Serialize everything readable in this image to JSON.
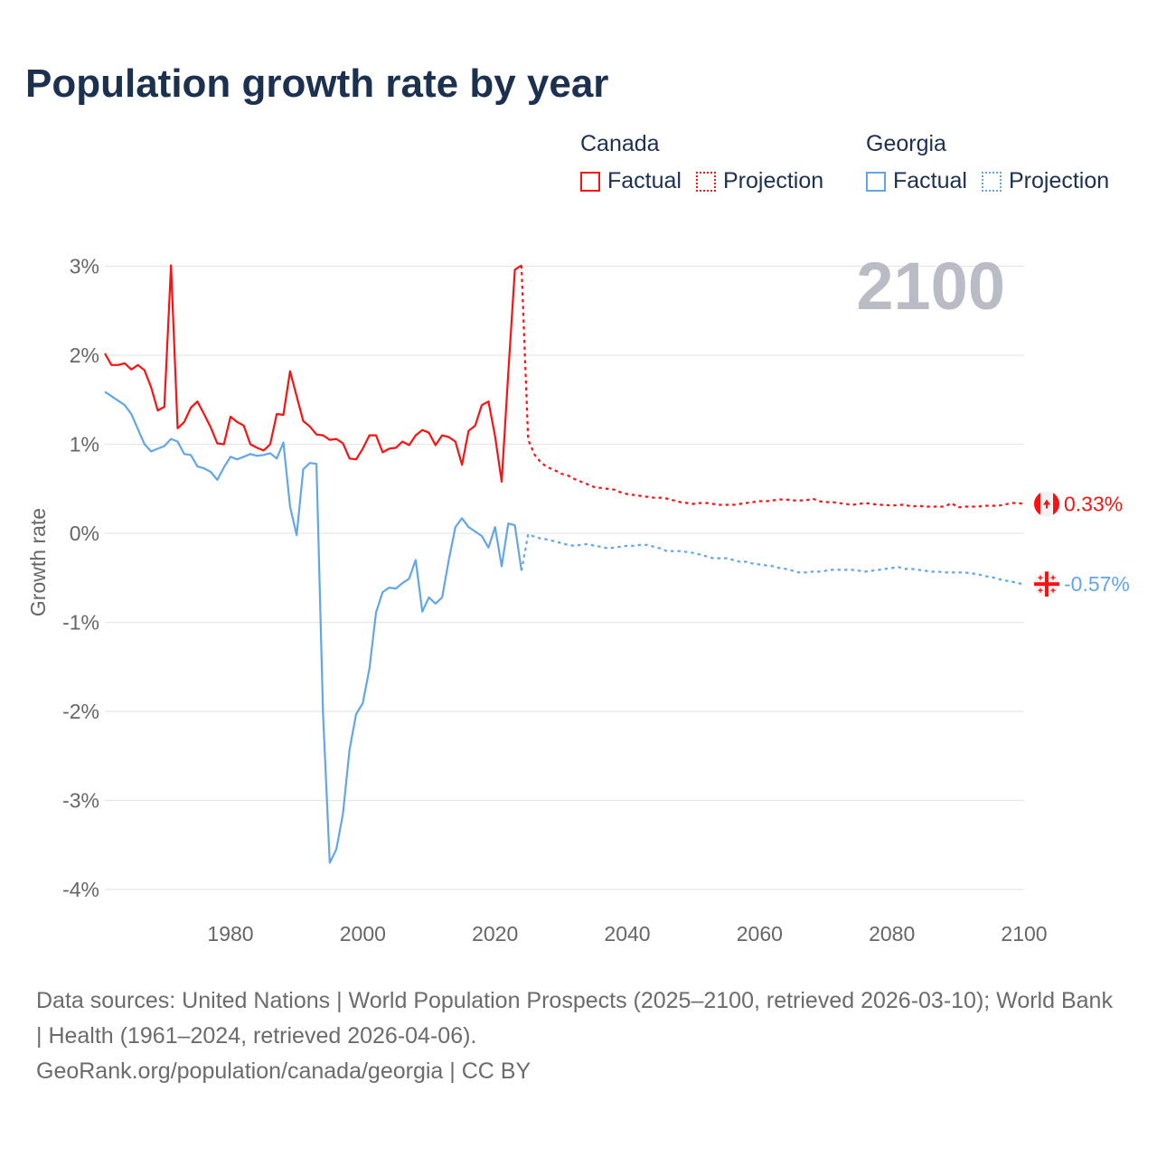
{
  "title": "Population growth rate by year",
  "legend": {
    "groups": [
      {
        "name": "Canada",
        "factual_label": "Factual",
        "projection_label": "Projection"
      },
      {
        "name": "Georgia",
        "factual_label": "Factual",
        "projection_label": "Projection"
      }
    ]
  },
  "year_watermark": "2100",
  "footer": {
    "sources": "Data sources: United Nations | World Population Prospects (2025–2100, retrieved 2026-03-10); World Bank | Health (1961–2024, retrieved 2026-04-06).",
    "credit": "GeoRank.org/population/canada/georgia | CC BY"
  },
  "colors": {
    "canada": "#ff1010",
    "georgia": "#62a6e8",
    "title": "#1c3150",
    "axis_text": "#666666",
    "grid": "#e6e6e6",
    "watermark": "#b9bcc4"
  },
  "chart_data": {
    "type": "line",
    "title": "Population growth rate by year",
    "xlabel": "",
    "ylabel": "Growth rate",
    "xlim": [
      1961,
      2100
    ],
    "ylim": [
      -4.2,
      3.2
    ],
    "x_ticks": [
      1980,
      2000,
      2020,
      2040,
      2060,
      2080,
      2100
    ],
    "y_ticks": [
      3,
      2,
      1,
      0,
      -1,
      -2,
      -3,
      -4
    ],
    "y_tick_labels": [
      "3%",
      "2%",
      "1%",
      "0%",
      "-1%",
      "-2%",
      "-3%",
      "-4%"
    ],
    "grid": true,
    "legend_position": "top-right",
    "series": [
      {
        "name": "Canada",
        "kind": "factual",
        "start_year": 1961,
        "values": [
          2.02,
          1.89,
          1.89,
          1.91,
          1.84,
          1.89,
          1.83,
          1.64,
          1.38,
          1.42,
          3.01,
          1.18,
          1.25,
          1.41,
          1.48,
          1.34,
          1.19,
          1.01,
          1.0,
          1.31,
          1.25,
          1.21,
          1.0,
          0.96,
          0.93,
          1.0,
          1.34,
          1.33,
          1.82,
          1.54,
          1.26,
          1.2,
          1.11,
          1.1,
          1.05,
          1.06,
          1.01,
          0.84,
          0.83,
          0.95,
          1.1,
          1.1,
          0.91,
          0.95,
          0.96,
          1.03,
          0.99,
          1.1,
          1.16,
          1.13,
          0.99,
          1.1,
          1.08,
          1.03,
          0.77,
          1.15,
          1.21,
          1.44,
          1.48,
          1.09,
          0.58,
          1.8,
          2.96,
          3.01
        ]
      },
      {
        "name": "Canada",
        "kind": "projection",
        "start_year": 2025,
        "values": [
          1.05,
          0.88,
          0.79,
          0.74,
          0.71,
          0.67,
          0.65,
          0.61,
          0.58,
          0.55,
          0.52,
          0.51,
          0.5,
          0.49,
          0.46,
          0.44,
          0.43,
          0.42,
          0.41,
          0.4,
          0.4,
          0.39,
          0.37,
          0.35,
          0.34,
          0.33,
          0.34,
          0.34,
          0.33,
          0.32,
          0.32,
          0.32,
          0.33,
          0.34,
          0.35,
          0.36,
          0.36,
          0.37,
          0.38,
          0.38,
          0.37,
          0.37,
          0.37,
          0.39,
          0.36,
          0.35,
          0.35,
          0.34,
          0.33,
          0.32,
          0.33,
          0.34,
          0.33,
          0.32,
          0.32,
          0.31,
          0.32,
          0.32,
          0.3,
          0.31,
          0.3,
          0.3,
          0.3,
          0.3,
          0.34,
          0.29,
          0.3,
          0.3,
          0.3,
          0.31,
          0.31,
          0.31,
          0.32,
          0.34,
          0.34,
          0.33
        ]
      },
      {
        "name": "Georgia",
        "kind": "factual",
        "start_year": 1961,
        "values": [
          1.59,
          1.54,
          1.49,
          1.44,
          1.34,
          1.17,
          1.0,
          0.92,
          0.95,
          0.98,
          1.06,
          1.03,
          0.89,
          0.88,
          0.75,
          0.73,
          0.69,
          0.6,
          0.74,
          0.86,
          0.83,
          0.86,
          0.89,
          0.87,
          0.88,
          0.9,
          0.84,
          1.02,
          0.3,
          -0.02,
          0.72,
          0.79,
          0.78,
          -2.03,
          -3.7,
          -3.55,
          -3.15,
          -2.43,
          -2.03,
          -1.91,
          -1.52,
          -0.89,
          -0.66,
          -0.61,
          -0.62,
          -0.56,
          -0.51,
          -0.3,
          -0.88,
          -0.72,
          -0.79,
          -0.72,
          -0.3,
          0.07,
          0.17,
          0.07,
          0.02,
          -0.03,
          -0.16,
          0.07,
          -0.37,
          0.11,
          0.09,
          -0.42
        ]
      },
      {
        "name": "Georgia",
        "kind": "projection",
        "start_year": 2025,
        "values": [
          -0.01,
          -0.04,
          -0.06,
          -0.07,
          -0.09,
          -0.11,
          -0.13,
          -0.14,
          -0.13,
          -0.12,
          -0.14,
          -0.15,
          -0.17,
          -0.16,
          -0.15,
          -0.14,
          -0.14,
          -0.13,
          -0.13,
          -0.15,
          -0.17,
          -0.2,
          -0.2,
          -0.2,
          -0.21,
          -0.22,
          -0.24,
          -0.26,
          -0.28,
          -0.28,
          -0.28,
          -0.3,
          -0.32,
          -0.32,
          -0.34,
          -0.35,
          -0.36,
          -0.37,
          -0.39,
          -0.4,
          -0.42,
          -0.44,
          -0.44,
          -0.43,
          -0.43,
          -0.42,
          -0.41,
          -0.41,
          -0.41,
          -0.41,
          -0.42,
          -0.43,
          -0.42,
          -0.41,
          -0.4,
          -0.39,
          -0.38,
          -0.4,
          -0.4,
          -0.41,
          -0.42,
          -0.43,
          -0.43,
          -0.44,
          -0.44,
          -0.44,
          -0.44,
          -0.45,
          -0.46,
          -0.48,
          -0.49,
          -0.51,
          -0.53,
          -0.54,
          -0.56,
          -0.57
        ]
      }
    ],
    "end_labels": [
      {
        "name": "Canada",
        "text": "0.33%",
        "value": 0.33,
        "flag": "canada-flag"
      },
      {
        "name": "Georgia",
        "text": "-0.57%",
        "value": -0.57,
        "flag": "georgia-flag"
      }
    ]
  }
}
